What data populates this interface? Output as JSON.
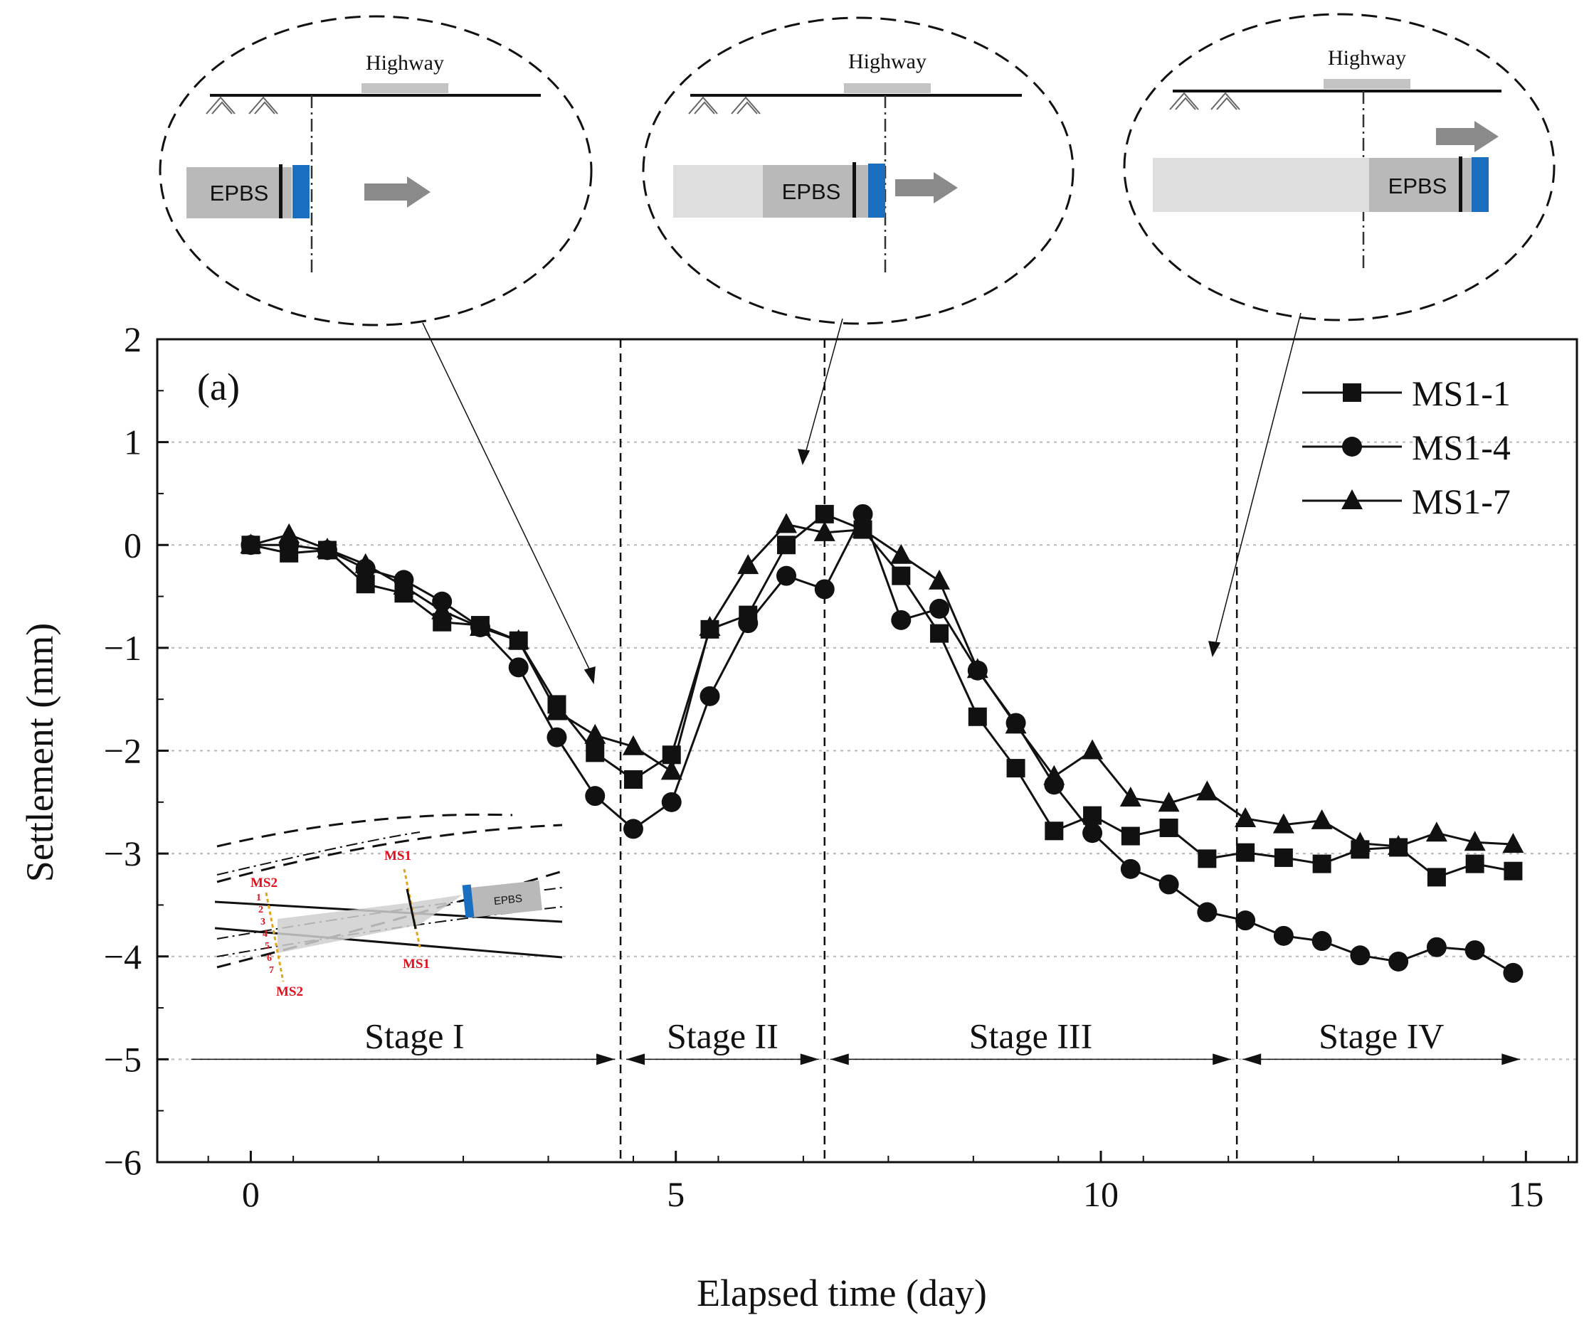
{
  "chart_data": {
    "type": "line",
    "panel_label": "(a)",
    "xlabel": "Elapsed time (day)",
    "ylabel": "Settlement (mm)",
    "xlim": [
      -1.1,
      15.6
    ],
    "ylim": [
      -6,
      2
    ],
    "xticks": [
      0,
      5,
      10,
      15
    ],
    "yticks": [
      2,
      1,
      0,
      -1,
      -2,
      -3,
      -4,
      -5,
      -6
    ],
    "ytick_labels": [
      "2",
      "1",
      "0",
      "−1",
      "−2",
      "−3",
      "−4",
      "−5",
      "−6"
    ],
    "grid": "horizontal dotted",
    "legend_position": "top-right",
    "series": [
      {
        "name": "MS1-1",
        "marker": "square",
        "x": [
          0,
          0.45,
          0.9,
          1.35,
          1.8,
          2.25,
          2.7,
          3.15,
          3.6,
          4.05,
          4.5,
          4.95,
          5.4,
          5.85,
          6.3,
          6.75,
          7.2,
          7.65,
          8.1,
          8.55,
          9.0,
          9.45,
          9.9,
          10.35,
          10.8,
          11.25,
          11.7,
          12.15,
          12.6,
          13.05,
          13.5,
          13.95,
          14.4,
          14.85
        ],
        "values": [
          0.0,
          -0.08,
          -0.05,
          -0.38,
          -0.47,
          -0.75,
          -0.78,
          -0.93,
          -1.55,
          -2.02,
          -2.28,
          -2.04,
          -0.82,
          -0.68,
          0.0,
          0.3,
          0.15,
          -0.3,
          -0.86,
          -1.67,
          -2.17,
          -2.78,
          -2.63,
          -2.83,
          -2.75,
          -3.05,
          -2.99,
          -3.04,
          -3.1,
          -2.96,
          -2.94,
          -3.23,
          -3.1,
          -3.17
        ]
      },
      {
        "name": "MS1-4",
        "marker": "circle",
        "x": [
          0,
          0.45,
          0.9,
          1.35,
          1.8,
          2.25,
          2.7,
          3.15,
          3.6,
          4.05,
          4.5,
          4.95,
          5.4,
          5.85,
          6.3,
          6.75,
          7.2,
          7.65,
          8.1,
          8.55,
          9.0,
          9.45,
          9.9,
          10.35,
          10.8,
          11.25,
          11.7,
          12.15,
          12.6,
          13.05,
          13.5,
          13.95,
          14.4,
          14.85
        ],
        "values": [
          0.0,
          0.0,
          -0.05,
          -0.23,
          -0.34,
          -0.55,
          -0.8,
          -1.19,
          -1.87,
          -2.44,
          -2.76,
          -2.5,
          -1.47,
          -0.76,
          -0.3,
          -0.43,
          0.3,
          -0.73,
          -0.62,
          -1.22,
          -1.73,
          -2.33,
          -2.8,
          -3.15,
          -3.3,
          -3.57,
          -3.65,
          -3.8,
          -3.85,
          -3.99,
          -4.05,
          -3.91,
          -3.94,
          -4.16
        ]
      },
      {
        "name": "MS1-7",
        "marker": "triangle",
        "x": [
          0,
          0.45,
          0.9,
          1.35,
          1.8,
          2.25,
          2.7,
          3.15,
          3.6,
          4.05,
          4.5,
          4.95,
          5.4,
          5.85,
          6.3,
          6.75,
          7.2,
          7.65,
          8.1,
          8.55,
          9.0,
          9.45,
          9.9,
          10.35,
          10.8,
          11.25,
          11.7,
          12.15,
          12.6,
          13.05,
          13.5,
          13.95,
          14.4,
          14.85
        ],
        "values": [
          0.0,
          0.1,
          -0.04,
          -0.19,
          -0.4,
          -0.64,
          -0.8,
          -0.93,
          -1.62,
          -1.85,
          -1.96,
          -2.2,
          -0.8,
          -0.2,
          0.2,
          0.12,
          0.15,
          -0.1,
          -0.35,
          -1.21,
          -1.75,
          -2.25,
          -2.0,
          -2.46,
          -2.51,
          -2.4,
          -2.66,
          -2.72,
          -2.68,
          -2.9,
          -2.93,
          -2.8,
          -2.89,
          -2.91
        ]
      }
    ],
    "stage_boundaries": [
      4.35,
      6.75,
      11.6
    ],
    "stages": [
      {
        "label": "Stage I",
        "from": -0.7,
        "to": 4.35
      },
      {
        "label": "Stage II",
        "from": 4.35,
        "to": 6.75
      },
      {
        "label": "Stage III",
        "from": 6.75,
        "to": 11.6
      },
      {
        "label": "Stage IV",
        "from": 11.6,
        "to": 15.0
      }
    ]
  },
  "schematics": {
    "highway_label": "Highway",
    "machine_label": "EPBS",
    "inset": {
      "line_labels": [
        "MS2",
        "MS1",
        "MS1",
        "MS2"
      ],
      "point_numbers": [
        "1",
        "2",
        "3",
        "4",
        "5",
        "6",
        "7"
      ],
      "machine_label": "EPBS"
    }
  },
  "colors": {
    "axis": "#111111",
    "series_line": "#111111",
    "grid": "#b8b8b8",
    "shield_blue": "#1a6fc0",
    "machine_gray": "#b9b9b9",
    "tunnel_light": "#dedede",
    "highway_gray": "#c3c3c3",
    "arrow_gray": "#8a8a8a",
    "label_red": "#e0101c",
    "marker_yellow": "#e3a51c"
  }
}
